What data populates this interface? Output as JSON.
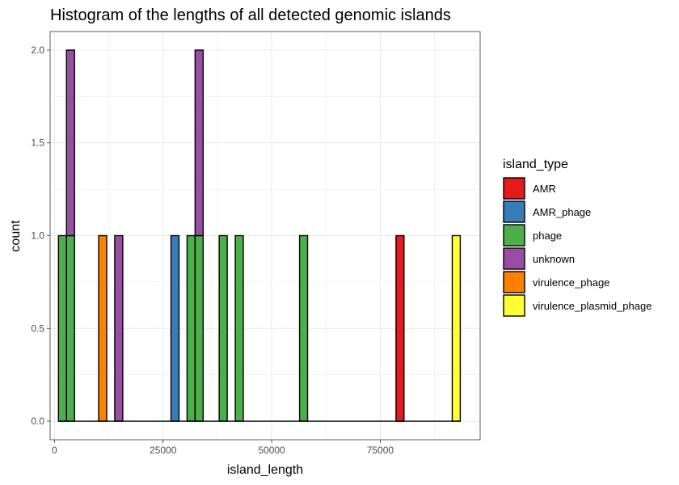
{
  "chart_data": {
    "type": "bar",
    "title": "Histogram of the lengths of all detected genomic islands",
    "xlabel": "island_length",
    "ylabel": "count",
    "xlim": [
      -1000,
      98000
    ],
    "ylim": [
      -0.1,
      2.1
    ],
    "x_ticks": [
      0,
      25000,
      50000,
      75000
    ],
    "x_tick_labels": [
      "0",
      "25000",
      "50000",
      "75000"
    ],
    "y_ticks": [
      0.0,
      0.5,
      1.0,
      1.5,
      2.0
    ],
    "y_tick_labels": [
      "0.0",
      "0.5",
      "1.0",
      "1.5",
      "2.0"
    ],
    "grid": true,
    "legend": {
      "title": "island_type",
      "position": "right",
      "entries": [
        {
          "name": "AMR",
          "color": "#E41A1C"
        },
        {
          "name": "AMR_phage",
          "color": "#377EB8"
        },
        {
          "name": "phage",
          "color": "#4DAF4A"
        },
        {
          "name": "unknown",
          "color": "#984EA3"
        },
        {
          "name": "virulence_phage",
          "color": "#FF7F00"
        },
        {
          "name": "virulence_plasmid_phage",
          "color": "#FFFF33"
        }
      ]
    },
    "bin_width": 1850,
    "bars": [
      {
        "x": 1850,
        "type": "phage",
        "count": 1
      },
      {
        "x": 3700,
        "type": "phage",
        "count": 1
      },
      {
        "x": 3700,
        "type": "unknown",
        "count": 1
      },
      {
        "x": 11100,
        "type": "virulence_phage",
        "count": 1
      },
      {
        "x": 14800,
        "type": "unknown",
        "count": 1
      },
      {
        "x": 27750,
        "type": "AMR_phage",
        "count": 1
      },
      {
        "x": 31450,
        "type": "phage",
        "count": 1
      },
      {
        "x": 33300,
        "type": "phage",
        "count": 1
      },
      {
        "x": 33300,
        "type": "unknown",
        "count": 1
      },
      {
        "x": 38850,
        "type": "phage",
        "count": 1
      },
      {
        "x": 42550,
        "type": "phage",
        "count": 1
      },
      {
        "x": 57350,
        "type": "phage",
        "count": 1
      },
      {
        "x": 79550,
        "type": "AMR",
        "count": 1
      },
      {
        "x": 92500,
        "type": "virulence_plasmid_phage",
        "count": 1
      }
    ]
  }
}
